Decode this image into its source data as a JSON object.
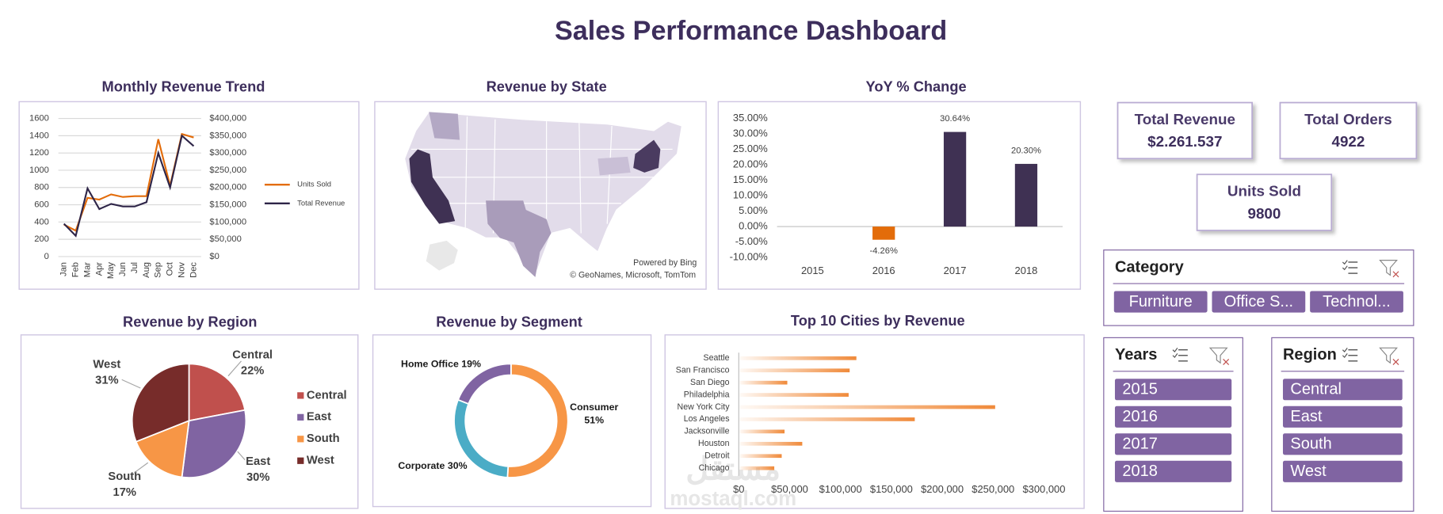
{
  "title": "Sales Performance Dashboard",
  "chart_data": [
    {
      "type": "line",
      "title": "Monthly Revenue Trend",
      "categories": [
        "Jan",
        "Feb",
        "Mar",
        "Apr",
        "May",
        "Jun",
        "Jul",
        "Aug",
        "Sep",
        "Oct",
        "Nov",
        "Dec"
      ],
      "series": [
        {
          "name": "Units Sold",
          "color": "#e36c0a",
          "values": [
            370,
            300,
            680,
            660,
            720,
            690,
            700,
            700,
            1360,
            820,
            1420,
            1380
          ]
        },
        {
          "name": "Total Revenue",
          "color": "#2e2548",
          "axis": "y2",
          "values": [
            95000,
            60000,
            197500,
            137500,
            152500,
            145000,
            145000,
            157500,
            300000,
            200000,
            350000,
            320000
          ]
        }
      ],
      "ylim": [
        0,
        1600
      ],
      "yticks": [
        0,
        200,
        400,
        600,
        800,
        1000,
        1200,
        1400,
        1600
      ],
      "y2lim": [
        0,
        400000
      ],
      "y2ticks": [
        {
          "value": 0,
          "label": "$0"
        },
        {
          "value": 50000,
          "label": "$50,000"
        },
        {
          "value": 100000,
          "label": "$100,000"
        },
        {
          "value": 150000,
          "label": "$150,000"
        },
        {
          "value": 200000,
          "label": "$200,000"
        },
        {
          "value": 250000,
          "label": "$250,000"
        },
        {
          "value": 300000,
          "label": "$300,000"
        },
        {
          "value": 350000,
          "label": "$350,000"
        },
        {
          "value": 400000,
          "label": "$400,000"
        }
      ],
      "grid": true,
      "legend": "right"
    },
    {
      "type": "map",
      "title": "Revenue by State",
      "attribution": [
        "Powered by Bing",
        "© GeoNames, Microsoft, TomTom"
      ]
    },
    {
      "type": "bar",
      "title": "YoY % Change",
      "categories": [
        "2015",
        "2016",
        "2017",
        "2018"
      ],
      "values": [
        null,
        -4.26,
        30.64,
        20.3
      ],
      "value_labels": [
        null,
        "-4.26%",
        "30.64%",
        "20.30%"
      ],
      "colors": [
        "#3f3153",
        "#e36c0a",
        "#3f3153",
        "#3f3153"
      ],
      "ylim": [
        -10,
        35
      ],
      "yticks": [
        {
          "value": -10,
          "label": "-10.00%"
        },
        {
          "value": -5,
          "label": "-5.00%"
        },
        {
          "value": 0,
          "label": "0.00%"
        },
        {
          "value": 5,
          "label": "5.00%"
        },
        {
          "value": 10,
          "label": "10.00%"
        },
        {
          "value": 15,
          "label": "15.00%"
        },
        {
          "value": 20,
          "label": "20.00%"
        },
        {
          "value": 25,
          "label": "25.00%"
        },
        {
          "value": 30,
          "label": "30.00%"
        },
        {
          "value": 35,
          "label": "35.00%"
        }
      ],
      "grid": false
    },
    {
      "type": "pie",
      "title": "Revenue by Region",
      "categories": [
        "Central",
        "East",
        "South",
        "West"
      ],
      "values": [
        22,
        30,
        17,
        31
      ],
      "value_labels": [
        "22%",
        "30%",
        "17%",
        "31%"
      ],
      "colors": [
        "#c0504d",
        "#8064a2",
        "#f79646",
        "#772c2a"
      ],
      "legend": "right"
    },
    {
      "type": "donut",
      "title": "Revenue by Segment",
      "categories": [
        "Consumer",
        "Corporate",
        "Home Office"
      ],
      "values": [
        51,
        30,
        19
      ],
      "value_labels": [
        "51%",
        "30%",
        "19%"
      ],
      "colors": [
        "#f79646",
        "#4bacc6",
        "#8064a2"
      ]
    },
    {
      "type": "barh",
      "title": "Top 10 Cities by Revenue",
      "categories": [
        "Seattle",
        "San Francisco",
        "San Diego",
        "Philadelphia",
        "New York City",
        "Los Angeles",
        "Jacksonville",
        "Houston",
        "Detroit",
        "Chicago"
      ],
      "values": [
        115600,
        109000,
        47700,
        108000,
        252000,
        173000,
        45000,
        62400,
        42200,
        34900
      ],
      "color": "#f08a3a",
      "xlim": [
        0,
        300000
      ],
      "xticks": [
        {
          "value": 0,
          "label": "$0"
        },
        {
          "value": 50000,
          "label": "$50,000"
        },
        {
          "value": 100000,
          "label": "$100,000"
        },
        {
          "value": 150000,
          "label": "$150,000"
        },
        {
          "value": 200000,
          "label": "$200,000"
        },
        {
          "value": 250000,
          "label": "$250,000"
        },
        {
          "value": 300000,
          "label": "$300,000"
        }
      ]
    }
  ],
  "kpis": [
    {
      "label": "Total Revenue",
      "value": "$2.261.537"
    },
    {
      "label": "Total Orders",
      "value": "4922"
    },
    {
      "label": "Units Sold",
      "value": "9800"
    }
  ],
  "slicers": [
    {
      "title": "Category",
      "items": [
        "Furniture",
        "Office S...",
        "Technol..."
      ]
    },
    {
      "title": "Years",
      "items": [
        "2015",
        "2016",
        "2017",
        "2018"
      ]
    },
    {
      "title": "Region",
      "items": [
        "Central",
        "East",
        "South",
        "West"
      ]
    }
  ],
  "watermark": [
    "مستقل",
    "mostaql.com"
  ]
}
